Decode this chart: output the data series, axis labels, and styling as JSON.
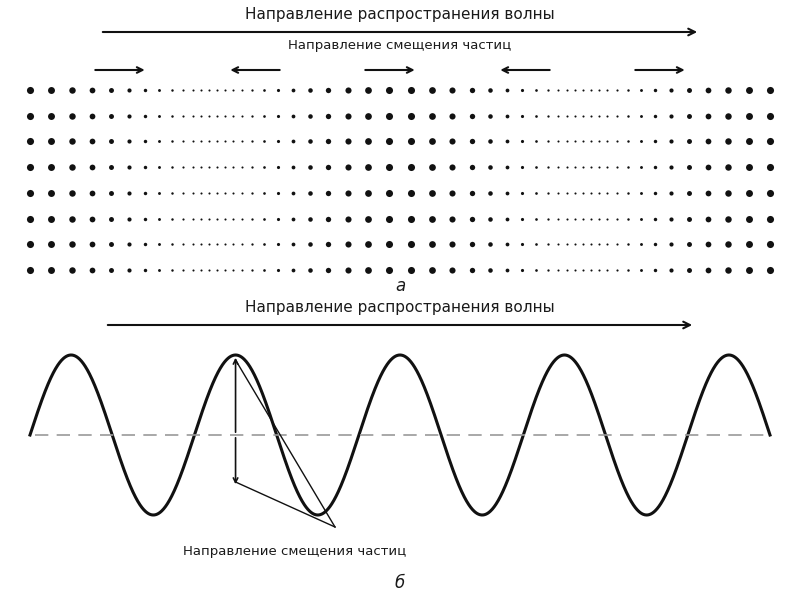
{
  "bg_color": "#ffffff",
  "text_color": "#1a1a1a",
  "top_title": "Направление распространения волны",
  "top_displacement_label": "Направление смещения частиц",
  "bottom_title": "Направление распространения волны",
  "bottom_label": "Направление смещения частиц",
  "label_a": "а",
  "label_b": "б",
  "dot_color": "#111111",
  "wave_color": "#111111",
  "dashed_color": "#999999",
  "arrow_color": "#111111",
  "n_rows": 8,
  "wave_periods": 4.5,
  "font_size_title": 11,
  "font_size_label": 9.5
}
